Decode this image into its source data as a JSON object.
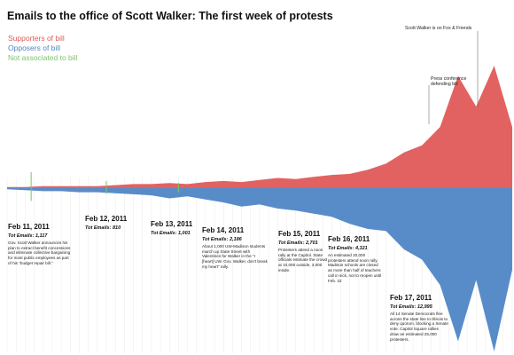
{
  "chart_data": {
    "type": "area",
    "title": "Emails to the office of Scott Walker: The first week of protests",
    "legend": [
      {
        "name": "Supporters of bill",
        "color": "#e05a5a"
      },
      {
        "name": "Opposers of bill",
        "color": "#4f86c6"
      },
      {
        "name": "Not associated to bill",
        "color": "#7cc36a"
      }
    ],
    "legend_position": "top-left",
    "grid": true,
    "x_unit": "hour",
    "x_range": [
      "2011-02-11 00:00",
      "2011-02-17 24:00"
    ],
    "series": [
      {
        "name": "Supporters of bill",
        "direction": "up",
        "points": [
          [
            0,
            1
          ],
          [
            6,
            1
          ],
          [
            12,
            2
          ],
          [
            18,
            2
          ],
          [
            24,
            2
          ],
          [
            30,
            2
          ],
          [
            36,
            3
          ],
          [
            42,
            4
          ],
          [
            48,
            4
          ],
          [
            54,
            5
          ],
          [
            60,
            4
          ],
          [
            66,
            6
          ],
          [
            72,
            7
          ],
          [
            78,
            6
          ],
          [
            84,
            8
          ],
          [
            90,
            10
          ],
          [
            96,
            9
          ],
          [
            102,
            11
          ],
          [
            108,
            13
          ],
          [
            114,
            14
          ],
          [
            120,
            18
          ],
          [
            126,
            24
          ],
          [
            132,
            35
          ],
          [
            138,
            42
          ],
          [
            144,
            60
          ],
          [
            150,
            110
          ],
          [
            156,
            80
          ],
          [
            162,
            120
          ],
          [
            168,
            60
          ]
        ]
      },
      {
        "name": "Opposers of bill",
        "direction": "down",
        "points": [
          [
            0,
            1
          ],
          [
            6,
            2
          ],
          [
            12,
            3
          ],
          [
            18,
            3
          ],
          [
            24,
            4
          ],
          [
            30,
            4
          ],
          [
            36,
            5
          ],
          [
            42,
            6
          ],
          [
            48,
            7
          ],
          [
            54,
            10
          ],
          [
            60,
            8
          ],
          [
            66,
            11
          ],
          [
            72,
            14
          ],
          [
            78,
            18
          ],
          [
            84,
            16
          ],
          [
            90,
            20
          ],
          [
            96,
            22
          ],
          [
            102,
            25
          ],
          [
            108,
            28
          ],
          [
            114,
            35
          ],
          [
            120,
            40
          ],
          [
            126,
            42
          ],
          [
            132,
            60
          ],
          [
            138,
            70
          ],
          [
            144,
            95
          ],
          [
            150,
            150
          ],
          [
            156,
            90
          ],
          [
            162,
            160
          ],
          [
            168,
            80
          ]
        ]
      }
    ],
    "spikes": [
      {
        "date": "Feb 11",
        "value": 18
      },
      {
        "date": "Feb 12",
        "value": 8
      },
      {
        "date": "Feb 13",
        "value": 6
      }
    ],
    "days": [
      {
        "label": "Feb 11, 2011",
        "total": "Tot Emails: 1,117",
        "note": "Gov. Scott Walker announces his plan to extract benefit concessions and eliminate collective bargaining for most public employees as part of his \"budget repair bill.\""
      },
      {
        "label": "Feb 12, 2011",
        "total": "Tot Emails: 810",
        "note": ""
      },
      {
        "label": "Feb 13, 2011",
        "total": "Tot Emails: 1,001",
        "note": ""
      },
      {
        "label": "Feb 14, 2011",
        "total": "Tot Emails: 2,186",
        "note": "About 1,000 UW-Madison students march up State Street with Valentines for Walker in the \"I [heart] UW. Gov. Walker, don't break my heart\" rally."
      },
      {
        "label": "Feb 15, 2011",
        "total": "Tot Emails: 2,701",
        "note": "Protesters attend a noon rally at the Capitol. State officials estimate the crowd at 10,000 outside, 3,000 inside."
      },
      {
        "label": "Feb 16, 2011",
        "total": "Tot Emails: 4,321",
        "note": "An estimated 20,000 protesters attend noon rally. Madison schools are closed as more than half of teachers call in sick, not to reopen until Feb. 22"
      },
      {
        "label": "Feb 17, 2011",
        "total": "Tot Emails: 12,995",
        "note": "All 14 Senate Democrats flee across the state line to Illinois to deny quorum, blocking a Senate vote. Capitol Square rallies draw an estimated 25,000 protesters."
      }
    ],
    "annotations": [
      {
        "text": "Scott Walker is on Fox & Friends"
      },
      {
        "text": "Press conference defending bill"
      }
    ]
  }
}
